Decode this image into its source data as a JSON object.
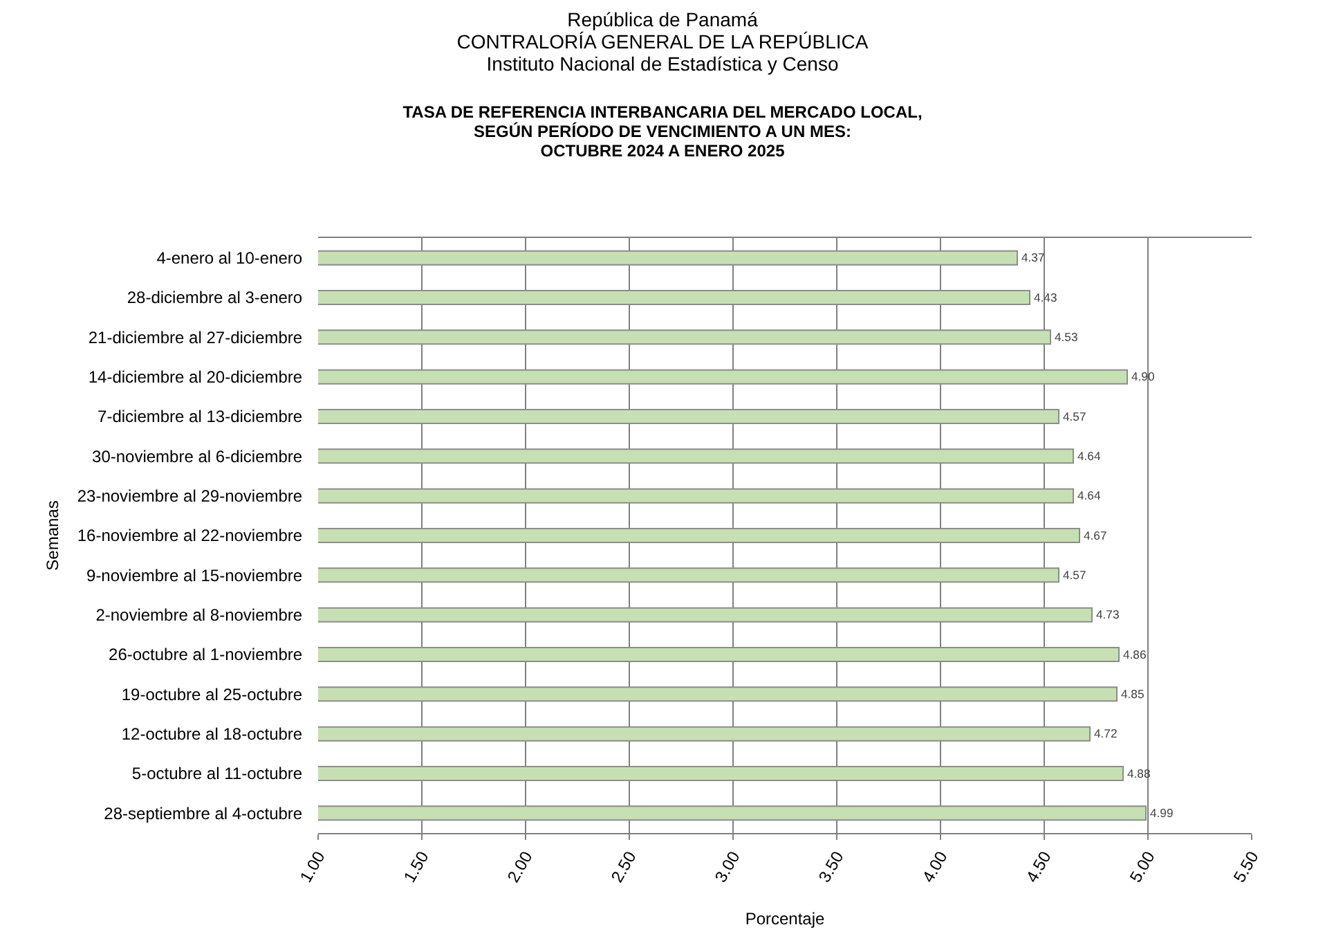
{
  "chart_data": {
    "type": "bar",
    "orientation": "horizontal",
    "title": "República de Panamá\nCONTRALORÍA GENERAL DE LA REPÚBLICA\nInstituto Nacional de Estadística y Censo",
    "subtitle": "TASA DE REFERENCIA  INTERBANCARIA  DEL MERCADO LOCAL,\nSEGÚN PERÍODO DE VENCIMIENTO A UN MES:\nOCTUBRE  2024 A ENERO  2025",
    "xlabel": "Porcentaje",
    "ylabel": "Semanas",
    "categories": [
      "4-enero al 10-enero",
      "28-diciembre al 3-enero",
      "21-diciembre al 27-diciembre",
      "14-diciembre al 20-diciembre",
      "7-diciembre al 13-diciembre",
      "30-noviembre al 6-diciembre",
      "23-noviembre al 29-noviembre",
      "16-noviembre al 22-noviembre",
      "9-noviembre al 15-noviembre",
      "2-noviembre al 8-noviembre",
      "26-octubre al 1-noviembre",
      "19-octubre al 25-octubre",
      "12-octubre al 18-octubre",
      "5-octubre al 11-octubre",
      "28-septiembre al 4-octubre"
    ],
    "values": [
      4.37,
      4.43,
      4.53,
      4.9,
      4.57,
      4.64,
      4.64,
      4.67,
      4.57,
      4.73,
      4.86,
      4.85,
      4.72,
      4.88,
      4.99
    ],
    "value_labels": [
      "4.37",
      "4.43",
      "4.53",
      "4.90",
      "4.57",
      "4.64",
      "4.64",
      "4.67",
      "4.57",
      "4.73",
      "4.86",
      "4.85",
      "4.72",
      "4.88",
      "4.99"
    ],
    "color": "#c6e0b4",
    "xlim": [
      1,
      5.5
    ],
    "xticks": [
      {
        "value": 1,
        "label": "1.00"
      },
      {
        "value": 1.5,
        "label": "1.50"
      },
      {
        "value": 2,
        "label": "2.00"
      },
      {
        "value": 2.5,
        "label": "2.50"
      },
      {
        "value": 3,
        "label": "3.00"
      },
      {
        "value": 3.5,
        "label": "3.50"
      },
      {
        "value": 4,
        "label": "4.00"
      },
      {
        "value": 4.5,
        "label": "4.50"
      },
      {
        "value": 5,
        "label": "5.00"
      },
      {
        "value": 5.5,
        "label": "5.50"
      }
    ],
    "grid": "x",
    "legend": false
  }
}
